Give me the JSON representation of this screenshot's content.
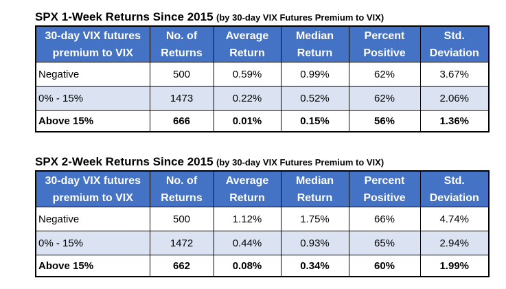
{
  "headers": [
    "30-day VIX futures premium to VIX",
    "No. of Returns",
    "Average Return",
    "Median Return",
    "Percent Positive",
    "Std. Deviation"
  ],
  "table1": {
    "title": "SPX 1-Week Returns Since 2015",
    "subtitle": "(by 30-day VIX Futures Premium to VIX)",
    "rows": [
      [
        "Negative",
        "500",
        "0.59%",
        "0.99%",
        "62%",
        "3.67%"
      ],
      [
        "0% - 15%",
        "1473",
        "0.22%",
        "0.52%",
        "62%",
        "2.06%"
      ],
      [
        "Above 15%",
        "666",
        "0.01%",
        "0.15%",
        "56%",
        "1.36%"
      ]
    ]
  },
  "table2": {
    "title": "SPX 2-Week Returns Since 2015",
    "subtitle": "(by 30-day VIX Futures Premium to VIX)",
    "rows": [
      [
        "Negative",
        "500",
        "1.12%",
        "1.75%",
        "66%",
        "4.74%"
      ],
      [
        "0% - 15%",
        "1472",
        "0.44%",
        "0.93%",
        "65%",
        "2.94%"
      ],
      [
        "Above 15%",
        "662",
        "0.08%",
        "0.34%",
        "60%",
        "1.99%"
      ]
    ]
  }
}
